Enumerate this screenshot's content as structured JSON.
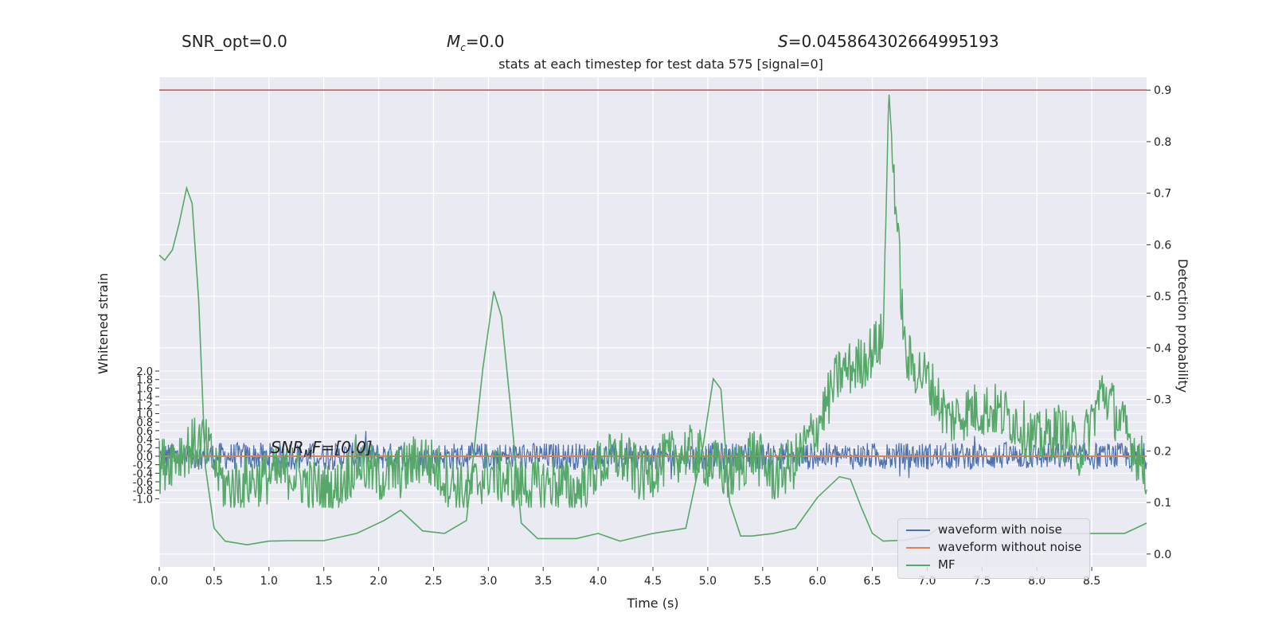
{
  "header": {
    "snr_opt": "SNR_opt=0.0",
    "mc_label": "M",
    "mc_sub": "c",
    "mc_value": "=0.0",
    "s_label": "S",
    "s_value": "=0.045864302664995193"
  },
  "chart_data": {
    "type": "line",
    "title": "stats at each timestep for test data 575 [signal=0]",
    "xlabel": "Time (s)",
    "ylabel_left": "Whitened strain",
    "ylabel_right": "Detection probability",
    "xlim": [
      0.0,
      9.0
    ],
    "ylim_right": [
      -0.025,
      0.925
    ],
    "ylim_left": [
      -2.6,
      8.9
    ],
    "x_ticks": [
      0.0,
      0.5,
      1.0,
      1.5,
      2.0,
      2.5,
      3.0,
      3.5,
      4.0,
      4.5,
      5.0,
      5.5,
      6.0,
      6.5,
      7.0,
      7.5,
      8.0,
      8.5
    ],
    "x_tick_labels": [
      "0.0",
      "0.5",
      "1.0",
      "1.5",
      "2.0",
      "2.5",
      "3.0",
      "3.5",
      "4.0",
      "4.5",
      "5.0",
      "5.5",
      "6.0",
      "6.5",
      "7.0",
      "7.5",
      "8.0",
      "8.5"
    ],
    "y_right_ticks": [
      0.0,
      0.1,
      0.2,
      0.3,
      0.4,
      0.5,
      0.6,
      0.7,
      0.8,
      0.9
    ],
    "y_right_tick_labels": [
      "0.0",
      "0.1",
      "0.2",
      "0.3",
      "0.4",
      "0.5",
      "0.6",
      "0.7",
      "0.8",
      "0.9"
    ],
    "y_left_ticks": [
      -1.0,
      -0.8,
      -0.6,
      -0.4,
      -0.2,
      0.0,
      0.2,
      0.4,
      0.6,
      0.8,
      1.0,
      1.2,
      1.4,
      1.6,
      1.8,
      2.0
    ],
    "y_left_tick_labels": [
      "-1.0",
      "-0.8",
      "-0.6",
      "-0.4",
      "-0.2",
      "0.0",
      "0.2",
      "0.4",
      "0.6",
      "0.8",
      "1.0",
      "1.2",
      "1.4",
      "1.6",
      "1.8",
      "2.0"
    ],
    "grid": true,
    "legend_position": "lower-right",
    "threshold": {
      "value": 0.9,
      "color": "#c44e52"
    },
    "annotation": {
      "prefix": "SNR",
      "sub": "M",
      "suffix": "F=[0.0]"
    },
    "series": [
      {
        "name": "waveform with noise",
        "color": "#4c72b0",
        "axis": "left",
        "kind": "noise",
        "center": 0.0,
        "amplitude": 0.32
      },
      {
        "name": "waveform without noise",
        "color": "#dd8452",
        "axis": "left",
        "kind": "constant",
        "value": 0.0
      },
      {
        "name": "MF",
        "color": "#55a868",
        "axis": "right",
        "kind": "noisy",
        "x": [
          0.0,
          0.2,
          0.4,
          0.6,
          0.8,
          1.0,
          1.2,
          1.4,
          1.6,
          1.8,
          2.0,
          2.2,
          2.4,
          2.6,
          2.8,
          3.0,
          3.2,
          3.4,
          3.6,
          3.8,
          4.0,
          4.2,
          4.4,
          4.6,
          4.8,
          5.0,
          5.2,
          5.4,
          5.6,
          5.8,
          6.0,
          6.2,
          6.4,
          6.6,
          6.65,
          6.8,
          7.0,
          7.2,
          7.4,
          7.6,
          7.8,
          8.0,
          8.2,
          8.4,
          8.6,
          8.8,
          9.0
        ],
        "y": [
          0.17,
          0.2,
          0.22,
          0.13,
          0.14,
          0.15,
          0.16,
          0.13,
          0.12,
          0.18,
          0.15,
          0.16,
          0.19,
          0.15,
          0.12,
          0.16,
          0.14,
          0.13,
          0.14,
          0.12,
          0.17,
          0.19,
          0.15,
          0.18,
          0.2,
          0.18,
          0.15,
          0.2,
          0.15,
          0.18,
          0.25,
          0.35,
          0.37,
          0.42,
          0.9,
          0.38,
          0.34,
          0.26,
          0.28,
          0.28,
          0.26,
          0.22,
          0.24,
          0.2,
          0.32,
          0.24,
          0.16
        ]
      },
      {
        "name": "",
        "color": "#55a868",
        "axis": "right",
        "kind": "smooth",
        "x": [
          0.0,
          0.05,
          0.12,
          0.18,
          0.25,
          0.3,
          0.36,
          0.42,
          0.5,
          0.6,
          0.8,
          1.0,
          1.2,
          1.5,
          1.8,
          2.05,
          2.2,
          2.4,
          2.6,
          2.8,
          2.95,
          3.05,
          3.12,
          3.2,
          3.3,
          3.45,
          3.6,
          3.8,
          4.0,
          4.2,
          4.5,
          4.8,
          4.95,
          5.05,
          5.12,
          5.2,
          5.3,
          5.4,
          5.6,
          5.8,
          6.0,
          6.2,
          6.3,
          6.4,
          6.5,
          6.6,
          6.8,
          7.0,
          7.1,
          7.3,
          7.6,
          8.0,
          8.3,
          8.6,
          8.8,
          9.0
        ],
        "y": [
          0.58,
          0.57,
          0.59,
          0.64,
          0.71,
          0.68,
          0.49,
          0.17,
          0.05,
          0.025,
          0.018,
          0.025,
          0.026,
          0.026,
          0.04,
          0.065,
          0.085,
          0.045,
          0.04,
          0.065,
          0.36,
          0.51,
          0.46,
          0.29,
          0.06,
          0.03,
          0.03,
          0.03,
          0.04,
          0.025,
          0.04,
          0.05,
          0.2,
          0.34,
          0.32,
          0.1,
          0.035,
          0.035,
          0.04,
          0.05,
          0.11,
          0.15,
          0.145,
          0.09,
          0.04,
          0.025,
          0.027,
          0.035,
          0.05,
          0.045,
          0.04,
          0.04,
          0.04,
          0.04,
          0.04,
          0.06
        ]
      }
    ]
  }
}
